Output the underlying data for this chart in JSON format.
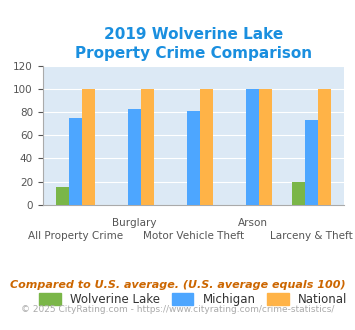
{
  "title": "2019 Wolverine Lake\nProperty Crime Comparison",
  "title_color": "#1a8fdf",
  "categories": [
    "All Property Crime",
    "Burglary",
    "Motor Vehicle Theft",
    "Arson",
    "Larceny & Theft"
  ],
  "wolverine_values": [
    15,
    0,
    0,
    0,
    20
  ],
  "michigan_values": [
    75,
    83,
    81,
    100,
    73
  ],
  "national_values": [
    100,
    100,
    100,
    100,
    100
  ],
  "wolverine_color": "#7ab648",
  "michigan_color": "#4da6ff",
  "national_color": "#ffb347",
  "ylim": [
    0,
    120
  ],
  "yticks": [
    0,
    20,
    40,
    60,
    80,
    100,
    120
  ],
  "legend_labels": [
    "Wolverine Lake",
    "Michigan",
    "National"
  ],
  "footnote1": "Compared to U.S. average. (U.S. average equals 100)",
  "footnote2": "© 2025 CityRating.com - https://www.cityrating.com/crime-statistics/",
  "footnote1_color": "#cc6600",
  "footnote2_color": "#aaaaaa",
  "url_color": "#4da6ff",
  "background_color": "#dce9f5",
  "fig_background": "#ffffff",
  "bar_width": 0.22,
  "title_fontsize": 11,
  "tick_fontsize": 7.5,
  "legend_fontsize": 8.5,
  "footnote1_fontsize": 8,
  "footnote2_fontsize": 6.5
}
